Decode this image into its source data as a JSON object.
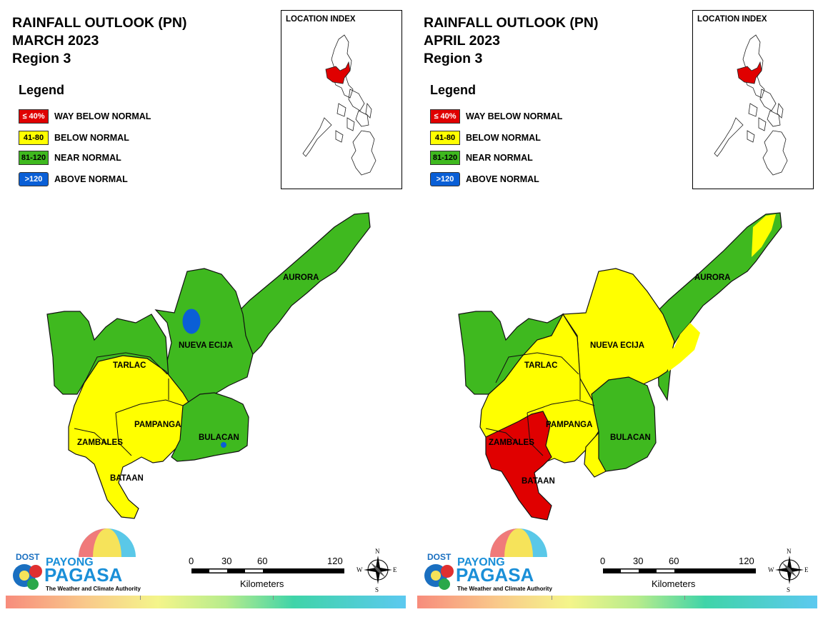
{
  "panels": [
    {
      "title_line1": "RAINFALL OUTLOOK (PN)",
      "title_line2": "MARCH 2023",
      "title_line3": "Region 3",
      "legend_title": "Legend",
      "legend": [
        {
          "swatch": "≤ 40%",
          "label": "WAY BELOW NORMAL",
          "color": "#e00000",
          "text_color": "#ffffff"
        },
        {
          "swatch": "41-80",
          "label": "BELOW NORMAL",
          "color": "#ffff00",
          "text_color": "#000000"
        },
        {
          "swatch": "81-120",
          "label": "NEAR NORMAL",
          "color": "#3fb91f",
          "text_color": "#000000"
        },
        {
          "swatch": ">120",
          "label": "ABOVE NORMAL",
          "color": "#0a5fd6",
          "text_color": "#ffffff"
        }
      ],
      "inset_title": "LOCATION INDEX",
      "provinces": {
        "aurora": "AURORA",
        "nueva_ecija": "NUEVA ECIJA",
        "tarlac": "TARLAC",
        "pampanga": "PAMPANGA",
        "zambales": "ZAMBALES",
        "bulacan": "BULACAN",
        "bataan": "BATAAN"
      },
      "scale": {
        "t0": "0",
        "t1": "30",
        "t2": "60",
        "t3": "120",
        "unit": "Kilometers"
      },
      "compass": {
        "n": "N",
        "e": "E",
        "s": "S",
        "w": "W"
      },
      "logo": {
        "dost": "DOST",
        "payong": "PAYONG",
        "pagasa": "PAGASA",
        "tagline": "The Weather and Climate Authority"
      }
    },
    {
      "title_line1": "RAINFALL OUTLOOK (PN)",
      "title_line2": "APRIL 2023",
      "title_line3": "Region 3",
      "legend_title": "Legend",
      "legend": [
        {
          "swatch": "≤ 40%",
          "label": "WAY BELOW NORMAL",
          "color": "#e00000",
          "text_color": "#ffffff"
        },
        {
          "swatch": "41-80",
          "label": "BELOW NORMAL",
          "color": "#ffff00",
          "text_color": "#000000"
        },
        {
          "swatch": "81-120",
          "label": "NEAR NORMAL",
          "color": "#3fb91f",
          "text_color": "#000000"
        },
        {
          "swatch": ">120",
          "label": "ABOVE NORMAL",
          "color": "#0a5fd6",
          "text_color": "#ffffff"
        }
      ],
      "inset_title": "LOCATION INDEX",
      "provinces": {
        "aurora": "AURORA",
        "nueva_ecija": "NUEVA ECIJA",
        "tarlac": "TARLAC",
        "pampanga": "PAMPANGA",
        "zambales": "ZAMBALES",
        "bulacan": "BULACAN",
        "bataan": "BATAAN"
      },
      "scale": {
        "t0": "0",
        "t1": "30",
        "t2": "60",
        "t3": "120",
        "unit": "Kilometers"
      },
      "compass": {
        "n": "N",
        "e": "E",
        "s": "S",
        "w": "W"
      },
      "logo": {
        "dost": "DOST",
        "payong": "PAYONG",
        "pagasa": "PAGASA",
        "tagline": "The Weather and Climate Authority"
      }
    }
  ],
  "colors": {
    "way_below": "#e00000",
    "below": "#ffff00",
    "near": "#3fb91f",
    "above": "#0a5fd6",
    "highlight_region": "#e00000",
    "pagasa_blue": "#1a8fd8"
  }
}
